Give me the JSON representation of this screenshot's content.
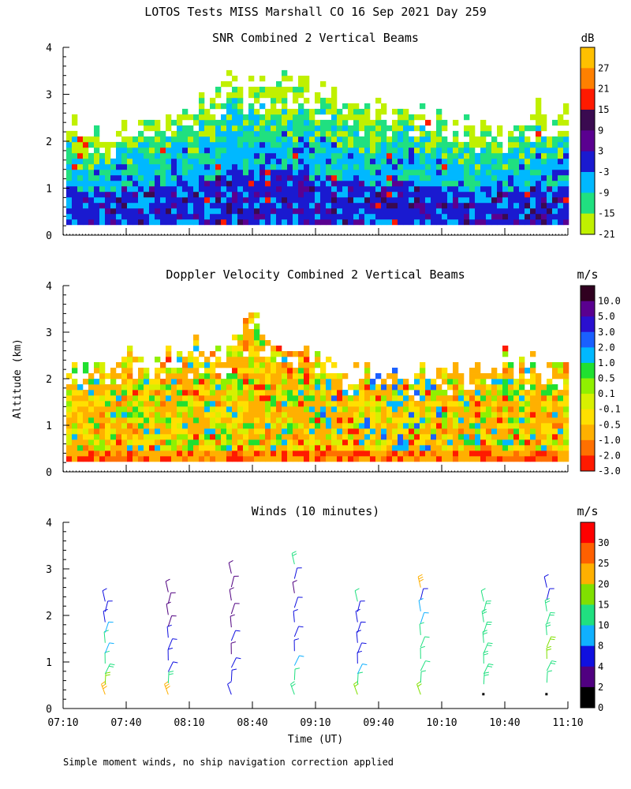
{
  "figure": {
    "title": "LOTOS Tests MISS Marshall CO  16 Sep 2021 Day 259",
    "footnote": "Simple moment winds, no ship navigation correction applied",
    "xlabel": "Time (UT)",
    "ylabel": "Altitude (km)"
  },
  "chart_data": [
    {
      "type": "heatmap",
      "title": "SNR Combined 2 Vertical Beams",
      "colorbar_unit": "dB",
      "colorbar_labels": [
        "27",
        "21",
        "15",
        "9",
        "3",
        "-3",
        "-9",
        "-15",
        "-21"
      ],
      "colors": [
        "#ffc000",
        "#ff8000",
        "#ff1a00",
        "#3a0a50",
        "#5a0090",
        "#1a1ad0",
        "#00b8ff",
        "#20e080",
        "#c0f000"
      ],
      "x_ticks": [
        "07:10",
        "07:40",
        "08:10",
        "08:40",
        "09:10",
        "09:40",
        "10:10",
        "10:40",
        "11:10"
      ],
      "xlim_hours": [
        7.1667,
        11.1667
      ],
      "y_ticks": [
        "0",
        "1",
        "2",
        "3",
        "4"
      ],
      "ylim_km": [
        0,
        4
      ],
      "field_top_km": [
        2.3,
        2.2,
        2.3,
        2.5,
        2.7,
        3.3,
        3.2,
        3.4,
        3.0,
        2.8,
        2.6,
        2.7,
        2.5,
        2.3,
        2.2,
        2.6,
        2.7
      ],
      "typical_dB_by_altitude": [
        {
          "km": 0.5,
          "dB": 0
        },
        {
          "km": 1.0,
          "dB": -3
        },
        {
          "km": 1.5,
          "dB": -9
        },
        {
          "km": 2.0,
          "dB": -15
        },
        {
          "km": 2.5,
          "dB": -21
        }
      ]
    },
    {
      "type": "heatmap",
      "title": "Doppler Velocity Combined 2 Vertical Beams",
      "colorbar_unit": "m/s",
      "colorbar_labels": [
        "10.0",
        "5.0",
        "3.0",
        "2.0",
        "1.0",
        "0.5",
        "0.1",
        "-0.1",
        "-0.5",
        "-1.0",
        "-2.0",
        "-3.0"
      ],
      "colors": [
        "#300020",
        "#5a0090",
        "#2a10d0",
        "#1a60ff",
        "#00b8ff",
        "#20e030",
        "#90f000",
        "#d8f000",
        "#ffe000",
        "#ffb000",
        "#ff7000",
        "#ff1a00"
      ],
      "x_ticks": [
        "07:10",
        "07:40",
        "08:10",
        "08:40",
        "09:10",
        "09:40",
        "10:10",
        "10:40",
        "11:10"
      ],
      "xlim_hours": [
        7.1667,
        11.1667
      ],
      "y_ticks": [
        "0",
        "1",
        "2",
        "3",
        "4"
      ],
      "ylim_km": [
        0,
        4
      ],
      "field_top_km": [
        2.2,
        2.2,
        2.5,
        2.4,
        2.7,
        2.6,
        3.3,
        2.4,
        2.5,
        2.3,
        2.2,
        2.0,
        2.3,
        2.2,
        2.4,
        2.2,
        2.2
      ]
    },
    {
      "type": "scatter",
      "title": "Winds (10 minutes)",
      "colorbar_unit": "m/s",
      "colorbar_labels": [
        "30",
        "25",
        "20",
        "15",
        "10",
        "8",
        "4",
        "2",
        "0"
      ],
      "colors": [
        "#ff0000",
        "#ff6000",
        "#ffb000",
        "#80e000",
        "#20e080",
        "#10b0ff",
        "#1010e0",
        "#500080",
        "#000000"
      ],
      "x_ticks": [
        "07:10",
        "07:40",
        "08:10",
        "08:40",
        "09:10",
        "09:40",
        "10:10",
        "10:40",
        "11:10"
      ],
      "xlim_hours": [
        7.1667,
        11.1667
      ],
      "y_ticks": [
        "0",
        "1",
        "2",
        "3",
        "4"
      ],
      "ylim_km": [
        0,
        4
      ],
      "profiles": [
        {
          "time_hours": 7.5,
          "top_km": 2.3,
          "speeds_ms": [
            20,
            15,
            12,
            10,
            9,
            10,
            8,
            6,
            5,
            4
          ]
        },
        {
          "time_hours": 8.0,
          "top_km": 2.5,
          "speeds_ms": [
            22,
            12,
            6,
            5,
            5,
            4,
            3,
            3,
            3,
            3
          ]
        },
        {
          "time_hours": 8.5,
          "top_km": 2.9,
          "speeds_ms": [
            4,
            4,
            4,
            3,
            4,
            3,
            3,
            3,
            3,
            3
          ]
        },
        {
          "time_hours": 9.0,
          "top_km": 3.1,
          "speeds_ms": [
            14,
            10,
            8,
            6,
            5,
            5,
            4,
            3,
            5,
            12
          ]
        },
        {
          "time_hours": 9.5,
          "top_km": 2.3,
          "speeds_ms": [
            16,
            10,
            8,
            7,
            6,
            6,
            6,
            5,
            6,
            10
          ]
        },
        {
          "time_hours": 10.0,
          "top_km": 2.6,
          "speeds_ms": [
            17,
            11,
            11,
            10,
            10,
            10,
            9,
            8,
            5,
            20
          ]
        },
        {
          "time_hours": 10.5,
          "top_km": 2.3,
          "speeds_ms": [
            0,
            12,
            14,
            14,
            13,
            13,
            12,
            12,
            12,
            11
          ]
        },
        {
          "time_hours": 11.0,
          "top_km": 2.6,
          "speeds_ms": [
            0,
            10,
            13,
            15,
            15,
            14,
            13,
            12,
            5,
            4
          ]
        }
      ]
    }
  ]
}
